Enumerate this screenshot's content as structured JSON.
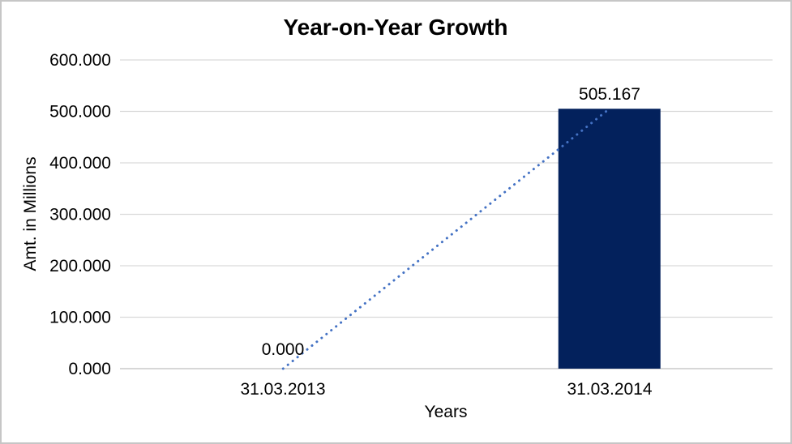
{
  "frame": {
    "background": "#ffffff",
    "border_color": "#c6c6c6"
  },
  "chart_data": {
    "type": "bar",
    "title": "Year-on-Year Growth",
    "xlabel": "Years",
    "ylabel": "Amt. in Millions",
    "categories": [
      "31.03.2013",
      "31.03.2014"
    ],
    "series": [
      {
        "name": "amount-bars",
        "type": "bar",
        "values": [
          0,
          505.167
        ],
        "point_labels": [
          "0.000",
          "505.167"
        ],
        "color": "#03215c"
      },
      {
        "name": "trend-line",
        "type": "dotted-line",
        "values": [
          0,
          505.167
        ],
        "color": "#4472c4"
      }
    ],
    "ylim": [
      0,
      600
    ],
    "ytick_step": 100,
    "ytick_labels": [
      "0.000",
      "100.000",
      "200.000",
      "300.000",
      "400.000",
      "500.000",
      "600.000"
    ],
    "grid": true,
    "legend_position": "none",
    "colors": {
      "gridline": "#d9d9d9",
      "axis_line": "#bfbfbf",
      "text": "#000000"
    }
  }
}
